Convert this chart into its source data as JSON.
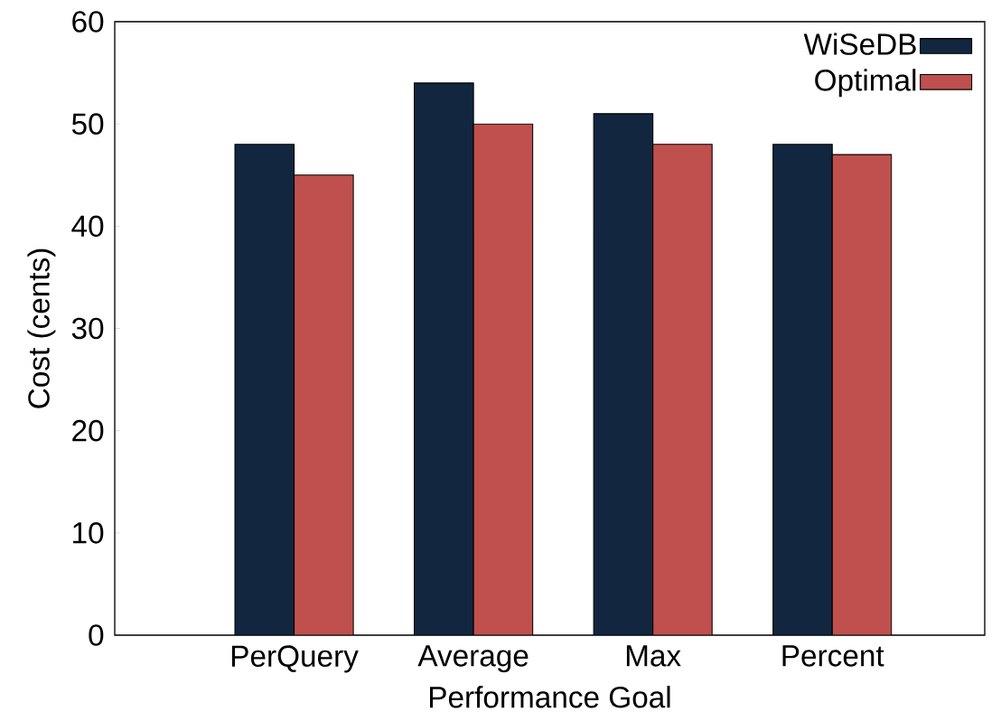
{
  "chart_data": {
    "type": "bar",
    "xlabel": "Performance Goal",
    "ylabel": "Cost (cents)",
    "categories": [
      "PerQuery",
      "Average",
      "Max",
      "Percent"
    ],
    "series": [
      {
        "name": "WiSeDB",
        "color": "#12263f",
        "values": [
          48,
          54,
          51,
          48
        ]
      },
      {
        "name": "Optimal",
        "color": "#c0504d",
        "values": [
          45,
          50,
          48,
          47
        ]
      }
    ],
    "ylim": [
      0,
      60
    ],
    "yticks": [
      0,
      10,
      20,
      30,
      40,
      50,
      60
    ],
    "grid": false,
    "legend": "top right"
  }
}
